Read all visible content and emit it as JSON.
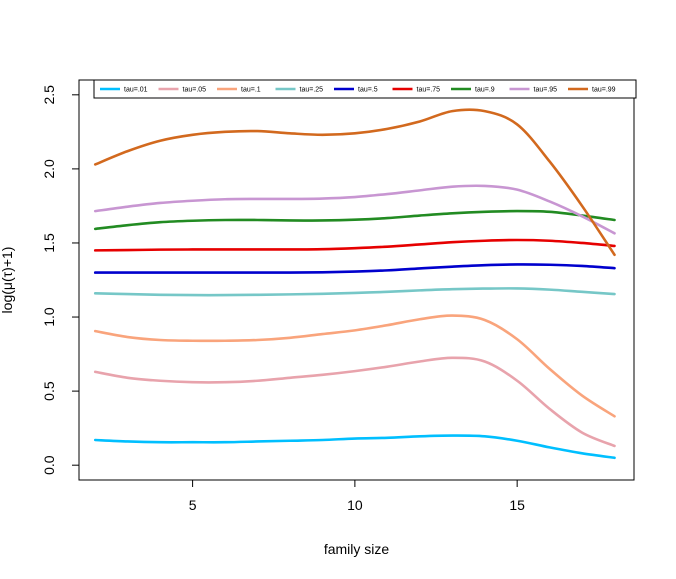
{
  "chart_data": {
    "type": "line",
    "title": "",
    "xlabel": "family size",
    "ylabel": "log(μ(τ)+1)",
    "xlim": [
      1.5,
      18.6
    ],
    "ylim": [
      -0.1,
      2.6
    ],
    "x_ticks": [
      5,
      10,
      15
    ],
    "x_tick_labels": [
      "5",
      "10",
      "15"
    ],
    "y_ticks": [
      0.0,
      0.5,
      1.0,
      1.5,
      2.0,
      2.5
    ],
    "y_tick_labels": [
      "0.0",
      "0.5",
      "1.0",
      "1.5",
      "2.0",
      "2.5"
    ],
    "legend_position": "top",
    "x": [
      2,
      3,
      4,
      5,
      6,
      7,
      8,
      9,
      10,
      11,
      12,
      13,
      14,
      15,
      16,
      17,
      18
    ],
    "series": [
      {
        "name": "tau=.01",
        "color": "#00BFFF",
        "values": [
          0.17,
          0.16,
          0.155,
          0.155,
          0.155,
          0.16,
          0.165,
          0.17,
          0.18,
          0.185,
          0.195,
          0.2,
          0.195,
          0.165,
          0.12,
          0.08,
          0.05
        ]
      },
      {
        "name": "tau=.05",
        "color": "#E8A3AC",
        "values": [
          0.63,
          0.59,
          0.57,
          0.56,
          0.56,
          0.57,
          0.59,
          0.61,
          0.635,
          0.665,
          0.7,
          0.725,
          0.7,
          0.57,
          0.38,
          0.22,
          0.13
        ]
      },
      {
        "name": "tau=.1",
        "color": "#F9A47C",
        "values": [
          0.905,
          0.865,
          0.845,
          0.84,
          0.84,
          0.845,
          0.86,
          0.885,
          0.91,
          0.945,
          0.985,
          1.01,
          0.98,
          0.85,
          0.65,
          0.47,
          0.33
        ]
      },
      {
        "name": "tau=.25",
        "color": "#76C7C7",
        "values": [
          1.16,
          1.155,
          1.15,
          1.148,
          1.148,
          1.15,
          1.153,
          1.157,
          1.163,
          1.17,
          1.18,
          1.188,
          1.192,
          1.193,
          1.185,
          1.17,
          1.155
        ]
      },
      {
        "name": "tau=.5",
        "color": "#0000CD",
        "values": [
          1.3,
          1.3,
          1.3,
          1.3,
          1.3,
          1.3,
          1.3,
          1.302,
          1.307,
          1.315,
          1.328,
          1.34,
          1.35,
          1.355,
          1.353,
          1.345,
          1.33
        ]
      },
      {
        "name": "tau=.75",
        "color": "#E60000",
        "values": [
          1.45,
          1.452,
          1.455,
          1.456,
          1.456,
          1.456,
          1.456,
          1.458,
          1.465,
          1.475,
          1.49,
          1.505,
          1.515,
          1.52,
          1.515,
          1.5,
          1.48
        ]
      },
      {
        "name": "tau=.9",
        "color": "#228B22",
        "values": [
          1.595,
          1.62,
          1.64,
          1.65,
          1.655,
          1.655,
          1.652,
          1.652,
          1.657,
          1.668,
          1.685,
          1.7,
          1.71,
          1.715,
          1.71,
          1.685,
          1.655
        ]
      },
      {
        "name": "tau=.95",
        "color": "#C896D2",
        "values": [
          1.715,
          1.745,
          1.77,
          1.785,
          1.795,
          1.797,
          1.797,
          1.8,
          1.81,
          1.83,
          1.855,
          1.88,
          1.885,
          1.86,
          1.78,
          1.68,
          1.565
        ]
      },
      {
        "name": "tau=.99",
        "color": "#D2691E",
        "values": [
          2.03,
          2.12,
          2.19,
          2.23,
          2.25,
          2.255,
          2.24,
          2.23,
          2.24,
          2.27,
          2.32,
          2.39,
          2.39,
          2.3,
          2.05,
          1.75,
          1.42
        ]
      }
    ]
  }
}
